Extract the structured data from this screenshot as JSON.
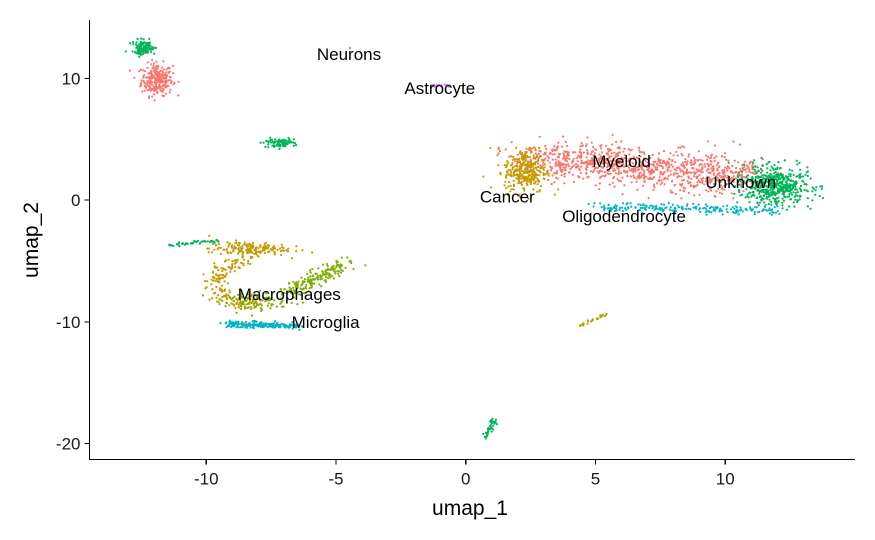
{
  "chart_data": {
    "type": "scatter",
    "title": "",
    "xlabel": "umap_1",
    "ylabel": "umap_2",
    "xlim": [
      -14.5,
      15.0
    ],
    "ylim": [
      -21.3,
      14.8
    ],
    "x_ticks": [
      -10,
      -5,
      0,
      5,
      10
    ],
    "y_ticks": [
      10,
      0,
      -10,
      -20
    ],
    "x_tick_labels": [
      "-10",
      "-5",
      "0",
      "5",
      "10"
    ],
    "y_tick_labels": [
      "10",
      "0",
      "-10",
      "-20"
    ],
    "grid": false,
    "legend": "none",
    "colors": {
      "red": "#F8766D",
      "gold": "#C49A00",
      "olive": "#7CAE00",
      "green": "#00B55A",
      "cyan": "#00B4C4",
      "purple": "#C77CFF"
    },
    "series": [
      {
        "color": "red",
        "clusters": [
          {
            "shape": "ellipse",
            "center": [
              -11.9,
              9.9
            ],
            "spread": [
              0.6,
              1.3
            ],
            "n": 260
          },
          {
            "shape": "band",
            "from": [
              2.6,
              3.4
            ],
            "to": [
              10.6,
              2.0
            ],
            "width": 1.6,
            "n": 1000
          }
        ]
      },
      {
        "color": "gold",
        "clusters": [
          {
            "shape": "blob",
            "center": [
              2.3,
              2.4
            ],
            "spread": [
              0.8,
              1.8
            ],
            "n": 300
          },
          {
            "shape": "ring",
            "center": [
              -8.6,
              -6.8
            ],
            "radius": [
              1.0,
              1.7
            ],
            "n": 170
          },
          {
            "shape": "blob",
            "center": [
              -8.4,
              -4.0
            ],
            "spread": [
              1.5,
              0.6
            ],
            "n": 170
          },
          {
            "shape": "band",
            "from": [
              4.4,
              -10.3
            ],
            "to": [
              5.4,
              -9.4
            ],
            "width": 0.1,
            "n": 28
          }
        ]
      },
      {
        "color": "olive",
        "clusters": [
          {
            "shape": "band",
            "from": [
              -6.9,
              -7.7
            ],
            "to": [
              -4.6,
              -5.1
            ],
            "width": 0.5,
            "n": 170
          },
          {
            "shape": "blob",
            "center": [
              -8.0,
              -8.3
            ],
            "spread": [
              1.4,
              0.8
            ],
            "n": 90
          }
        ]
      },
      {
        "color": "green",
        "clusters": [
          {
            "shape": "blob",
            "center": [
              -12.4,
              12.5
            ],
            "spread": [
              0.45,
              0.6
            ],
            "n": 110
          },
          {
            "shape": "blob",
            "center": [
              -7.2,
              4.7
            ],
            "spread": [
              0.6,
              0.35
            ],
            "n": 90
          },
          {
            "shape": "band",
            "from": [
              -11.5,
              -3.7
            ],
            "to": [
              -9.5,
              -3.3
            ],
            "width": 0.12,
            "n": 45
          },
          {
            "shape": "blob",
            "center": [
              11.9,
              1.2
            ],
            "spread": [
              1.3,
              1.5
            ],
            "n": 520
          },
          {
            "shape": "band",
            "from": [
              0.7,
              -19.6
            ],
            "to": [
              1.1,
              -18.0
            ],
            "width": 0.15,
            "n": 40
          }
        ]
      },
      {
        "color": "cyan",
        "clusters": [
          {
            "shape": "band",
            "from": [
              4.6,
              -0.5
            ],
            "to": [
              12.0,
              -0.9
            ],
            "width": 0.35,
            "n": 200
          },
          {
            "shape": "band",
            "from": [
              -9.2,
              -10.2
            ],
            "to": [
              -6.3,
              -10.3
            ],
            "width": 0.25,
            "n": 190
          }
        ]
      },
      {
        "color": "purple",
        "clusters": [
          {
            "shape": "band",
            "from": [
              -1.4,
              9.4
            ],
            "to": [
              -0.6,
              9.4
            ],
            "width": 0.1,
            "n": 25
          },
          {
            "shape": "blob",
            "center": [
              -4.5,
              12.5
            ],
            "spread": [
              0.04,
              0.04
            ],
            "n": 2
          }
        ]
      }
    ],
    "annotations": [
      {
        "text": "Neurons",
        "x": -4.5,
        "y": 12.0
      },
      {
        "text": "Astrocyte",
        "x": -1.0,
        "y": 9.2
      },
      {
        "text": "Myeloid",
        "x": 6.0,
        "y": 3.2
      },
      {
        "text": "Unknown",
        "x": 10.6,
        "y": 1.5
      },
      {
        "text": "Cancer",
        "x": 1.6,
        "y": 0.3
      },
      {
        "text": "Oligodendrocyte",
        "x": 6.1,
        "y": -1.3
      },
      {
        "text": "Macrophages",
        "x": -6.8,
        "y": -7.7
      },
      {
        "text": "Microglia",
        "x": -5.4,
        "y": -10.0
      }
    ]
  }
}
